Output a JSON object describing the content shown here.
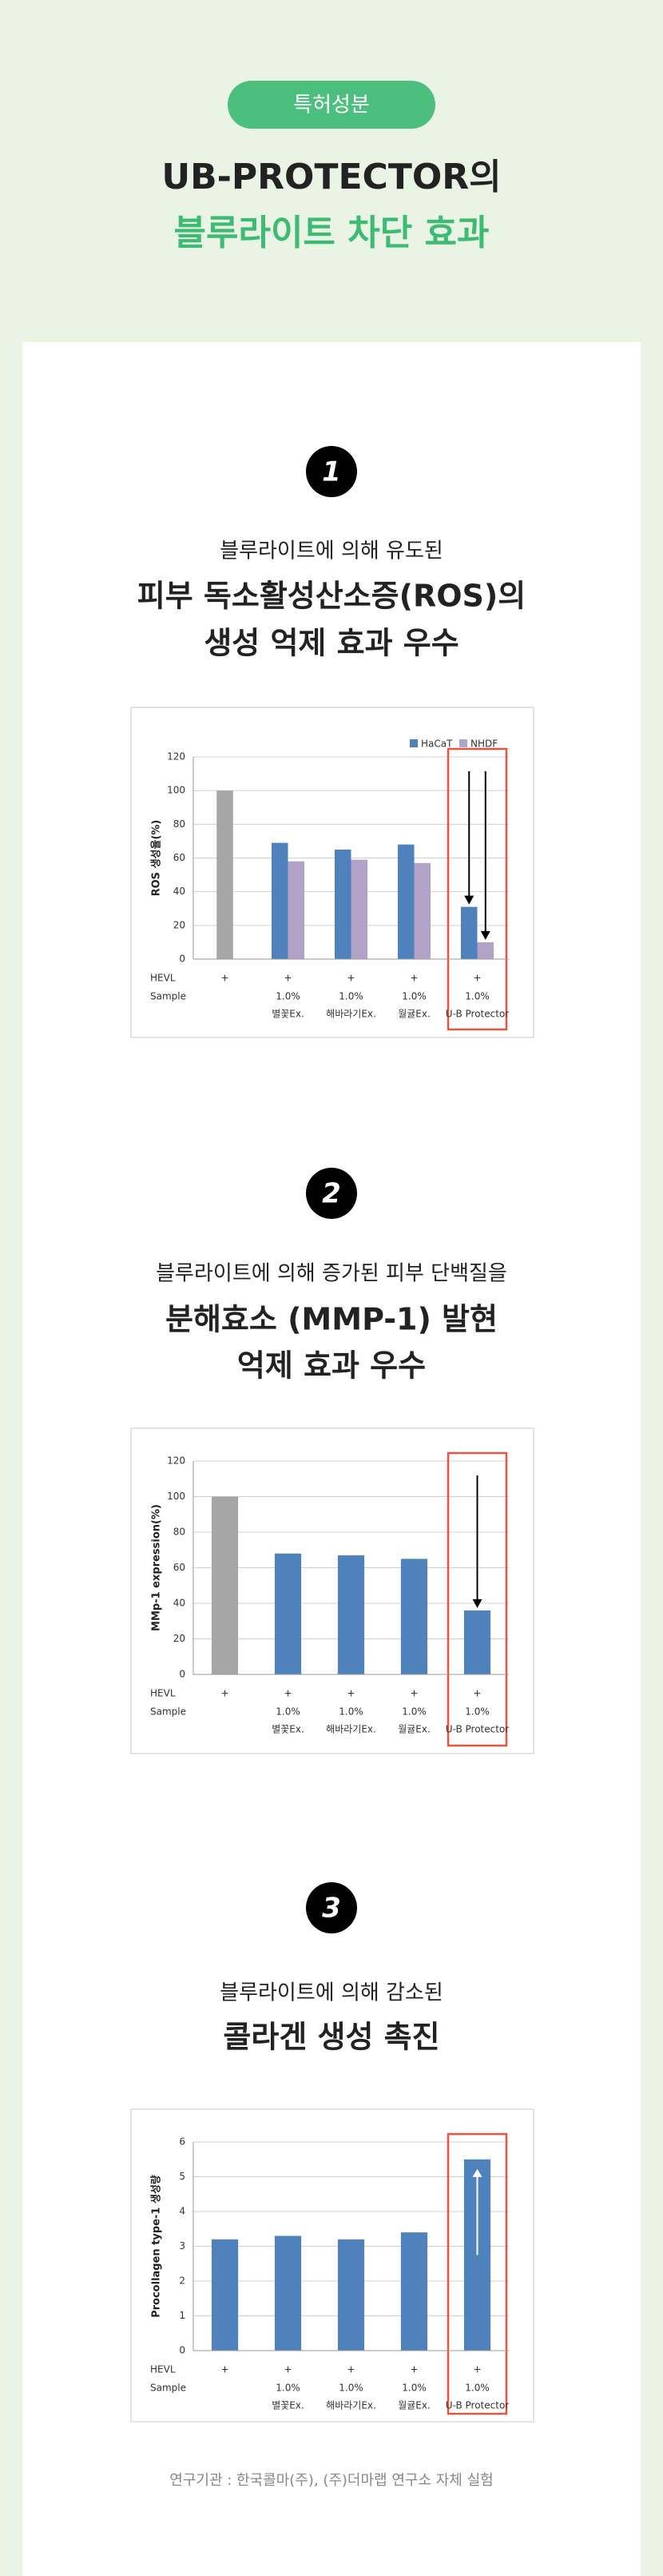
{
  "header": {
    "badge": "특허성분",
    "title_line1": "UB-PROTECTOR의",
    "title_line2": "블루라이트 차단 효과"
  },
  "sections": [
    {
      "number": "1",
      "lines": [
        "블루라이트에 의해 유도된",
        "피부 독소활성산소증(ROS)의",
        "생성 억제 효과 우수"
      ]
    },
    {
      "number": "2",
      "lines": [
        "블루라이트에 의해 증가된 피부 단백질을",
        "분해효소 (MMP-1) 발현",
        "억제 효과 우수"
      ]
    },
    {
      "number": "3",
      "lines": [
        "블루라이트에 의해 감소된",
        "콜라겐 생성 촉진"
      ]
    }
  ],
  "footnote": "연구기관 : 한국콜마(주), (주)더마랩 연구소 자체 실험",
  "chart_data": [
    {
      "type": "bar",
      "y_label": "ROS 생성율(%)",
      "row_labels": [
        "HEVL",
        "Sample"
      ],
      "hevl": [
        "+",
        "+",
        "+",
        "+",
        "+"
      ],
      "sample_dose": [
        null,
        "1.0%",
        "1.0%",
        "1.0%",
        "1.0%"
      ],
      "sample_name": [
        null,
        "별꽃Ex.",
        "해바라기Ex.",
        "월귤Ex.",
        "U-B Protector"
      ],
      "series": [
        {
          "name": "HaCaT",
          "color": "#4f81bd",
          "values": [
            100,
            69,
            65,
            68,
            31
          ]
        },
        {
          "name": "NHDF",
          "color": "#b3a2c7",
          "values": [
            null,
            58,
            59,
            57,
            10
          ]
        }
      ],
      "control_color": "#a6a6a6",
      "highlight_color": "#e8553f",
      "arrow": "down",
      "ylim": [
        0,
        120
      ],
      "yticks": [
        0,
        20,
        40,
        60,
        80,
        100,
        120
      ],
      "grid": true,
      "legend": "upper right"
    },
    {
      "type": "bar",
      "y_label": "MMp-1 expression(%)",
      "row_labels": [
        "HEVL",
        "Sample"
      ],
      "hevl": [
        "+",
        "+",
        "+",
        "+",
        "+"
      ],
      "sample_dose": [
        null,
        "1.0%",
        "1.0%",
        "1.0%",
        "1.0%"
      ],
      "sample_name": [
        null,
        "별꽃Ex.",
        "해바라기Ex.",
        "월귤Ex.",
        "U-B Protector"
      ],
      "series": [
        {
          "color": "#4f81bd",
          "values": [
            100,
            68,
            67,
            65,
            36
          ]
        }
      ],
      "control_color": "#a6a6a6",
      "highlight_color": "#e8553f",
      "arrow": "down",
      "ylim": [
        0,
        120
      ],
      "yticks": [
        0,
        20,
        40,
        60,
        80,
        100,
        120
      ],
      "grid": true
    },
    {
      "type": "bar",
      "y_label": "Procollagen type-1 생성량",
      "row_labels": [
        "HEVL",
        "Sample"
      ],
      "hevl": [
        "+",
        "+",
        "+",
        "+",
        "+"
      ],
      "sample_dose": [
        null,
        "1.0%",
        "1.0%",
        "1.0%",
        "1.0%"
      ],
      "sample_name": [
        null,
        "별꽃Ex.",
        "해바라기Ex.",
        "월귤Ex.",
        "U-B Protector"
      ],
      "series": [
        {
          "color": "#4f81bd",
          "values": [
            3.2,
            3.3,
            3.2,
            3.4,
            5.5
          ]
        }
      ],
      "highlight_color": "#e8553f",
      "arrow": "up",
      "ylim": [
        0,
        6
      ],
      "yticks": [
        0,
        1,
        2,
        3,
        4,
        5,
        6
      ],
      "grid": true
    }
  ]
}
